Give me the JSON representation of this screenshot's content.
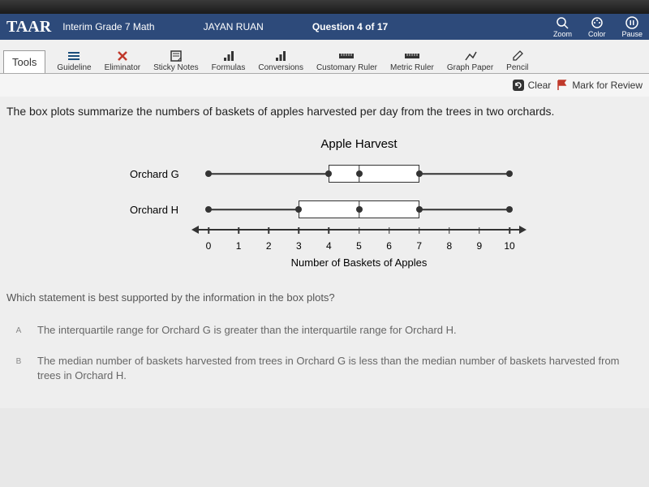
{
  "header": {
    "logo": "TAAR",
    "course": "Interim Grade 7 Math",
    "student": "JAYAN RUAN",
    "question_label": "Question 4 of 17",
    "right_items": [
      {
        "label": "Zoom"
      },
      {
        "label": "Color"
      },
      {
        "label": "Pause"
      }
    ]
  },
  "toolbar": {
    "label": "Tools",
    "items": [
      {
        "id": "guideline",
        "label": "Guideline",
        "color": "#1a4d7a"
      },
      {
        "id": "eliminator",
        "label": "Eliminator",
        "color": "#c0392b"
      },
      {
        "id": "sticky",
        "label": "Sticky Notes",
        "color": "#333"
      },
      {
        "id": "formulas",
        "label": "Formulas",
        "color": "#333"
      },
      {
        "id": "conversions",
        "label": "Conversions",
        "color": "#333"
      },
      {
        "id": "cust_ruler",
        "label": "Customary Ruler",
        "color": "#333"
      },
      {
        "id": "metric_ruler",
        "label": "Metric Ruler",
        "color": "#333"
      },
      {
        "id": "graph_paper",
        "label": "Graph Paper",
        "color": "#333"
      },
      {
        "id": "pencil",
        "label": "Pencil",
        "color": "#333"
      }
    ]
  },
  "actionbar": {
    "clear": "Clear",
    "mark": "Mark for Review",
    "flag_color": "#c0392b"
  },
  "question": {
    "text": "The box plots summarize the numbers of baskets of apples harvested per day from the trees in two orchards.",
    "followup": "Which statement is best supported by the information in the box plots?"
  },
  "chart": {
    "title": "Apple Harvest",
    "axis_label": "Number of Baskets of Apples",
    "axis": {
      "min": 0,
      "max": 10,
      "ticks": [
        0,
        1,
        2,
        3,
        4,
        5,
        6,
        7,
        8,
        9,
        10
      ]
    },
    "series": [
      {
        "label": "Orchard G",
        "min": 0,
        "q1": 4,
        "median": 5,
        "q3": 7,
        "max": 10
      },
      {
        "label": "Orchard H",
        "min": 0,
        "q1": 3,
        "median": 5,
        "q3": 7,
        "max": 10
      }
    ],
    "line_color": "#333333",
    "box_bg": "#ffffff"
  },
  "answers": [
    {
      "letter": "A",
      "text": "The interquartile range for Orchard G is greater than the interquartile range for Orchard H."
    },
    {
      "letter": "B",
      "text": "The median number of baskets harvested from trees in Orchard G is less than the median number of baskets harvested from trees in Orchard H."
    }
  ]
}
